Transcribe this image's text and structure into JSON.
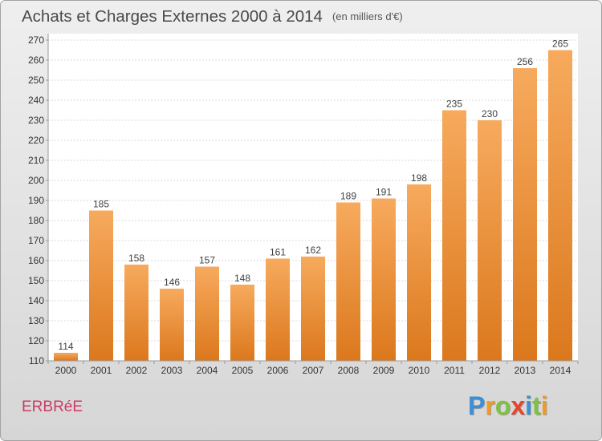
{
  "chart_data": {
    "type": "bar",
    "title": "Achats et Charges Externes 2000 à 2014",
    "subtitle": "(en milliers d'€)",
    "categories": [
      "2000",
      "2001",
      "2002",
      "2003",
      "2004",
      "2005",
      "2006",
      "2007",
      "2008",
      "2009",
      "2010",
      "2011",
      "2012",
      "2013",
      "2014"
    ],
    "values": [
      114,
      185,
      158,
      146,
      157,
      148,
      161,
      162,
      189,
      191,
      198,
      235,
      230,
      256,
      265
    ],
    "ylim": [
      110,
      270
    ],
    "yticks": [
      110,
      120,
      130,
      140,
      150,
      160,
      170,
      180,
      190,
      200,
      210,
      220,
      230,
      240,
      250,
      260,
      270
    ],
    "grid": true,
    "colors": {
      "bar_top": "#f7aa5d",
      "bar_bottom": "#db781d"
    }
  },
  "footer": {
    "location": "ERBRéE",
    "location_color": "#cc3a63"
  },
  "logo": {
    "letters": [
      {
        "char": "P",
        "color": "#3b8fd4"
      },
      {
        "char": "r",
        "color": "#f39a1f"
      },
      {
        "char": "o",
        "color": "#7fc241"
      },
      {
        "char": "x",
        "color": "#e8452c"
      },
      {
        "char": "i",
        "color": "#3b8fd4"
      },
      {
        "char": "t",
        "color": "#7fc241"
      },
      {
        "char": "i",
        "color": "#f39a1f"
      }
    ]
  }
}
